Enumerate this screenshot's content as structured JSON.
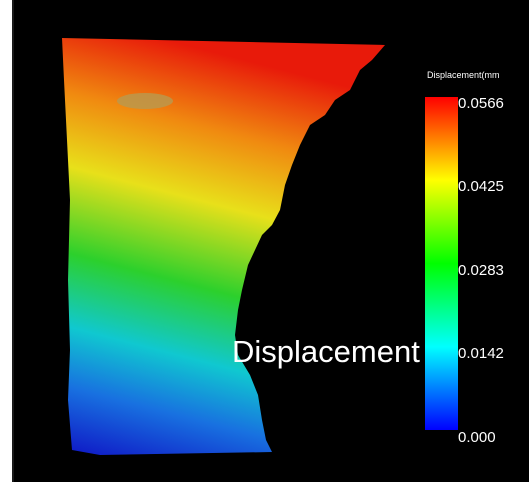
{
  "colorbar": {
    "title": "Displacement(mm",
    "ticks": [
      "0.0566",
      "0.0425",
      "0.0283",
      "0.0142",
      "0.000"
    ]
  },
  "overlay": {
    "label": "Displacement"
  }
}
